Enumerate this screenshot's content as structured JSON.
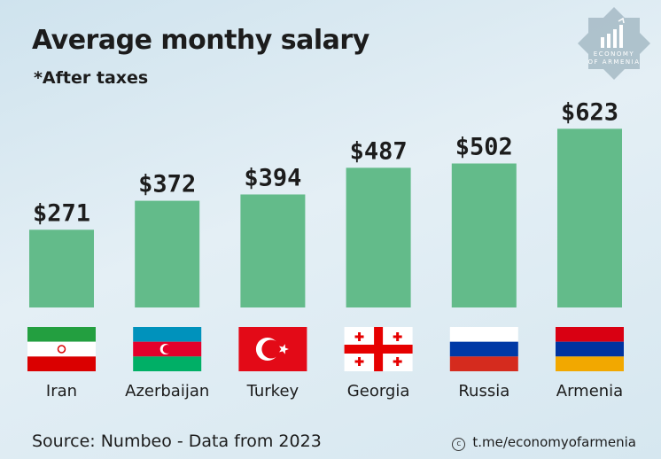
{
  "title": "Average monthy salary",
  "subtitle": "*After taxes",
  "source": "Source: Numbeo - Data from 2023",
  "link": "t.me/economyofarmenia",
  "logo": {
    "line1": "ECONOMY",
    "line2": "OF ARMENIA"
  },
  "colors": {
    "bar": "#63bb8a",
    "text": "#1c1c1c"
  },
  "chart_data": {
    "type": "bar",
    "title": "Average monthy salary",
    "subtitle": "*After taxes",
    "categories": [
      "Iran",
      "Azerbaijan",
      "Turkey",
      "Georgia",
      "Russia",
      "Armenia"
    ],
    "values": [
      271,
      372,
      394,
      487,
      502,
      623
    ],
    "value_labels": [
      "$271",
      "$372",
      "$394",
      "$487",
      "$502",
      "$623"
    ],
    "unit": "$",
    "flags": [
      "iran-flag-icon",
      "azerbaijan-flag-icon",
      "turkey-flag-icon",
      "georgia-flag-icon",
      "russia-flag-icon",
      "armenia-flag-icon"
    ],
    "grid": false,
    "legend": "none"
  }
}
